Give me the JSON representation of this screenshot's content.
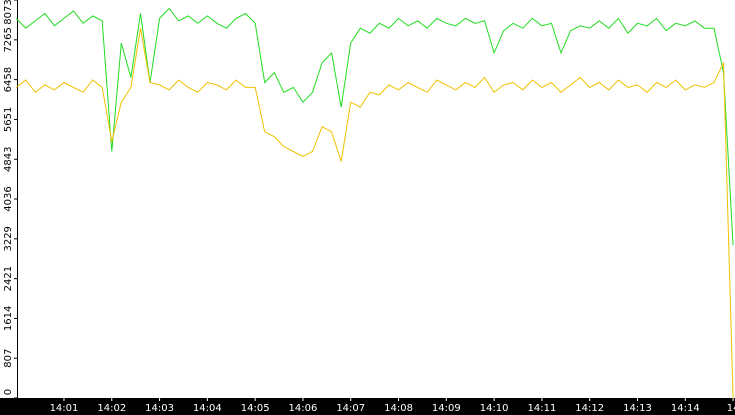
{
  "chart_data": {
    "type": "line",
    "x": [
      0.0,
      0.2,
      0.4,
      0.6,
      0.8,
      1.0,
      1.2,
      1.4,
      1.6,
      1.8,
      2.0,
      2.2,
      2.4,
      2.6,
      2.8,
      3.0,
      3.2,
      3.4,
      3.6,
      3.8,
      4.0,
      4.2,
      4.4,
      4.6,
      4.8,
      5.0,
      5.2,
      5.4,
      5.6,
      5.8,
      6.0,
      6.2,
      6.4,
      6.6,
      6.8,
      7.0,
      7.2,
      7.4,
      7.6,
      7.8,
      8.0,
      8.2,
      8.4,
      8.6,
      8.8,
      9.0,
      9.2,
      9.4,
      9.6,
      9.8,
      10.0,
      10.2,
      10.4,
      10.6,
      10.8,
      11.0,
      11.2,
      11.4,
      11.6,
      11.8,
      12.0,
      12.2,
      12.4,
      12.6,
      12.8,
      13.0,
      13.2,
      13.4,
      13.6,
      13.8,
      14.0,
      14.2,
      14.4,
      14.6,
      14.8,
      15.0
    ],
    "series": [
      {
        "name": "green",
        "color": "#22dd22",
        "values": [
          7700,
          7500,
          7650,
          7800,
          7550,
          7700,
          7850,
          7600,
          7750,
          7650,
          5000,
          7200,
          6500,
          7800,
          6400,
          7700,
          7900,
          7650,
          7750,
          7600,
          7750,
          7600,
          7500,
          7700,
          7800,
          7600,
          6400,
          6600,
          6200,
          6300,
          6000,
          6200,
          6800,
          7000,
          5900,
          7200,
          7500,
          7400,
          7600,
          7500,
          7700,
          7550,
          7650,
          7500,
          7700,
          7600,
          7550,
          7700,
          7600,
          7650,
          7000,
          7450,
          7600,
          7500,
          7700,
          7550,
          7600,
          7000,
          7450,
          7550,
          7500,
          7650,
          7500,
          7700,
          7400,
          7600,
          7550,
          7700,
          7450,
          7600,
          7550,
          7650,
          7500,
          7500,
          6600,
          3100
        ]
      },
      {
        "name": "yellow",
        "color": "#f0c000",
        "values": [
          6300,
          6450,
          6200,
          6350,
          6250,
          6400,
          6300,
          6200,
          6450,
          6300,
          5200,
          6000,
          6300,
          7500,
          6400,
          6350,
          6250,
          6450,
          6300,
          6200,
          6400,
          6350,
          6250,
          6450,
          6300,
          6300,
          5400,
          5300,
          5100,
          5000,
          4900,
          5000,
          5500,
          5400,
          4800,
          6000,
          5900,
          6200,
          6150,
          6350,
          6250,
          6400,
          6300,
          6200,
          6450,
          6350,
          6250,
          6400,
          6300,
          6500,
          6200,
          6350,
          6400,
          6250,
          6450,
          6300,
          6400,
          6200,
          6350,
          6500,
          6300,
          6400,
          6250,
          6450,
          6300,
          6350,
          6200,
          6400,
          6300,
          6450,
          6250,
          6350,
          6300,
          6400,
          6800,
          0
        ]
      }
    ],
    "xlim": [
      0.017,
      15.04
    ],
    "xticks": [
      {
        "value": 1,
        "label": "14:01"
      },
      {
        "value": 2,
        "label": "14:02"
      },
      {
        "value": 3,
        "label": "14:03"
      },
      {
        "value": 4,
        "label": "14:04"
      },
      {
        "value": 5,
        "label": "14:05"
      },
      {
        "value": 6,
        "label": "14:06"
      },
      {
        "value": 7,
        "label": "14:07"
      },
      {
        "value": 8,
        "label": "14:08"
      },
      {
        "value": 9,
        "label": "14:09"
      },
      {
        "value": 10,
        "label": "14:10"
      },
      {
        "value": 11,
        "label": "14:11"
      },
      {
        "value": 12,
        "label": "14:12"
      },
      {
        "value": 13,
        "label": "14:13"
      },
      {
        "value": 14,
        "label": "14:14"
      },
      {
        "value": 15,
        "label": "14"
      }
    ],
    "ylim": [
      0,
      8073
    ],
    "yticks": [
      0,
      807,
      1614,
      2421,
      3229,
      4036,
      4843,
      5651,
      6458,
      7265,
      8073
    ]
  }
}
